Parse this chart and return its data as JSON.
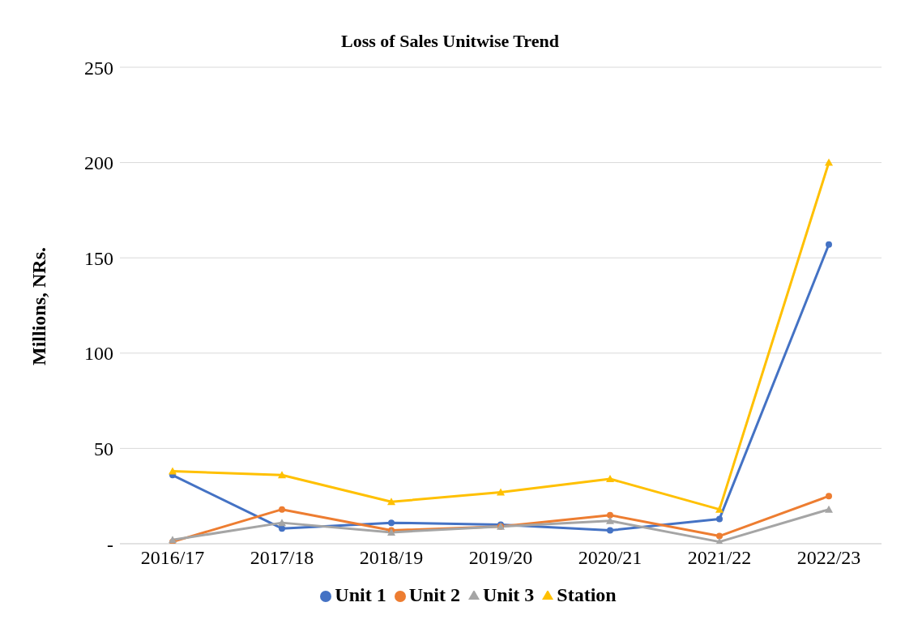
{
  "chart_data": {
    "type": "line",
    "title": "Loss of Sales Unitwise Trend",
    "ylabel": "Millions, NRs.",
    "categories": [
      "2016/17",
      "2017/18",
      "2018/19",
      "2019/20",
      "2020/21",
      "2021/22",
      "2022/23"
    ],
    "series": [
      {
        "name": "Unit 1",
        "color": "#4472c4",
        "marker": "circle",
        "values": [
          36,
          8,
          11,
          10,
          7,
          13,
          157
        ]
      },
      {
        "name": "Unit 2",
        "color": "#ed7d31",
        "marker": "circle",
        "values": [
          1,
          18,
          7,
          9,
          15,
          4,
          25
        ]
      },
      {
        "name": "Unit 3",
        "color": "#a5a5a5",
        "marker": "triangle",
        "values": [
          2,
          11,
          6,
          9,
          12,
          1,
          18
        ]
      },
      {
        "name": "Station",
        "color": "#ffc000",
        "marker": "triangle",
        "values": [
          38,
          36,
          22,
          27,
          34,
          18,
          200
        ]
      }
    ],
    "ylim": [
      0,
      250
    ],
    "yticks": [
      {
        "value": 0,
        "label": "-"
      },
      50,
      100,
      150,
      200,
      250
    ],
    "grid": "y",
    "legend": "bottom",
    "line_style": "solid"
  }
}
